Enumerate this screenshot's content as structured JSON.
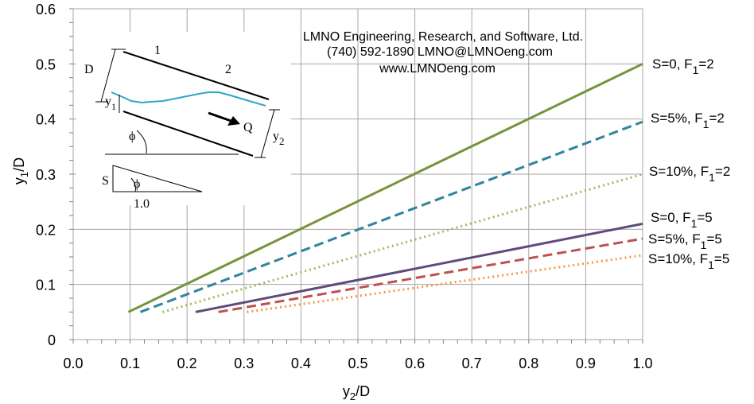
{
  "chart_data": {
    "type": "line",
    "xlabel": {
      "main": "y",
      "sub": "2",
      "rest": "/D"
    },
    "ylabel": {
      "main": "y",
      "sub": "1",
      "rest": "/D"
    },
    "xlim": [
      0,
      1.0
    ],
    "ylim": [
      0,
      0.6
    ],
    "x_ticks": [
      "0.0",
      "0.1",
      "0.2",
      "0.3",
      "0.4",
      "0.5",
      "0.6",
      "0.7",
      "0.8",
      "0.9",
      "1.0"
    ],
    "y_ticks": [
      "0",
      "0.1",
      "0.2",
      "0.3",
      "0.4",
      "0.5",
      "0.6"
    ],
    "grid": true,
    "series": [
      {
        "name": "S=0, F1=2",
        "label": {
          "pre": "S=0, F",
          "sub": "1",
          "post": "=2"
        },
        "color": "#77933c",
        "style": "solid",
        "x": [
          0.097,
          1.0
        ],
        "y": [
          0.05,
          0.5
        ]
      },
      {
        "name": "S=5%, F1=2",
        "label": {
          "pre": "S=5%, F",
          "sub": "1",
          "post": "=2"
        },
        "color": "#31859c",
        "style": "dashed",
        "x": [
          0.118,
          1.0
        ],
        "y": [
          0.05,
          0.395
        ]
      },
      {
        "name": "S=10%, F1=2",
        "label": {
          "pre": "S=10%, F",
          "sub": "1",
          "post": "=2"
        },
        "color": "#9bbb59",
        "style": "dotted",
        "x": [
          0.157,
          1.0
        ],
        "y": [
          0.05,
          0.3
        ]
      },
      {
        "name": "S=0, F1=5",
        "label": {
          "pre": "S=0, F",
          "sub": "1",
          "post": "=5"
        },
        "color": "#604a7b",
        "style": "solid",
        "x": [
          0.215,
          1.0
        ],
        "y": [
          0.05,
          0.21
        ]
      },
      {
        "name": "S=5%, F1=5",
        "label": {
          "pre": "S=5%, F",
          "sub": "1",
          "post": "=5"
        },
        "color": "#c0504d",
        "style": "dashed",
        "x": [
          0.255,
          1.0
        ],
        "y": [
          0.05,
          0.183
        ]
      },
      {
        "name": "S=10%, F1=5",
        "label": {
          "pre": "S=10%, F",
          "sub": "1",
          "post": "=5"
        },
        "color": "#f79646",
        "style": "dotted",
        "x": [
          0.305,
          1.0
        ],
        "y": [
          0.05,
          0.153
        ]
      }
    ],
    "annotations": {
      "credit": [
        "LMNO Engineering, Research, and Software, Ltd.",
        "(740) 592-1890   LMNO@LMNOeng.com",
        "www.LMNOeng.com"
      ],
      "diagram": {
        "D": "D",
        "section1": "1",
        "section2": "2",
        "y1": {
          "main": "y",
          "sub": "1"
        },
        "y2": {
          "main": "y",
          "sub": "2"
        },
        "Q": "Q",
        "phi": "ϕ",
        "S": "S",
        "run": "1.0"
      }
    }
  }
}
